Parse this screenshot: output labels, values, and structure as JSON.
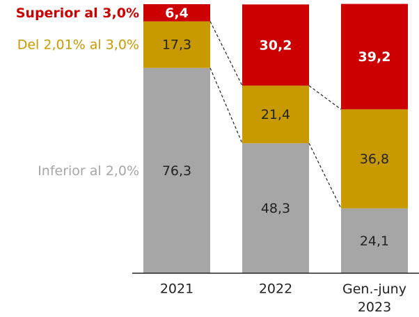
{
  "chart_data": {
    "type": "stacked_bar",
    "categories": [
      "2021",
      "2022",
      "Gen.-juny 2023"
    ],
    "ylim": [
      0,
      100
    ],
    "series": [
      {
        "name": "Inferior al 2,0%",
        "color": "#a6a6a6",
        "values": [
          76.3,
          48.3,
          24.1
        ],
        "value_labels": [
          "76,3",
          "48,3",
          "24,1"
        ]
      },
      {
        "name": "Del 2,01% al 3,0%",
        "color": "#c99a00",
        "values": [
          17.3,
          21.4,
          36.8
        ],
        "value_labels": [
          "17,3",
          "21,4",
          "36,8"
        ]
      },
      {
        "name": "Superior al 3,0%",
        "color": "#cc0000",
        "values": [
          6.4,
          30.2,
          39.2
        ],
        "value_labels": [
          "6,4",
          "30,2",
          "39,2"
        ]
      }
    ]
  }
}
